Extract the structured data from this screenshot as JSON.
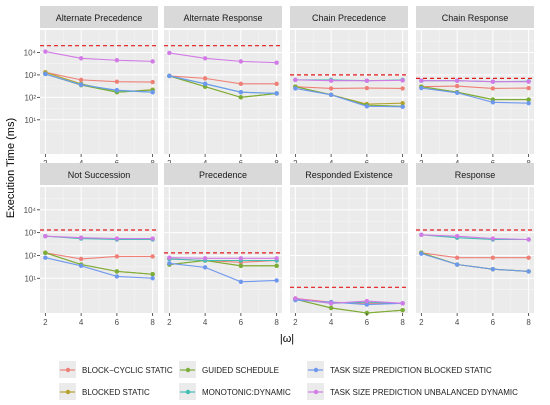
{
  "chart_data": {
    "type": "line",
    "ylabel": "Execution Time (ms)",
    "xlabel": "|ω|",
    "x": [
      2,
      4,
      6,
      8
    ],
    "x_ticks": [
      "2",
      "4",
      "6",
      "8"
    ],
    "y_scale": "log10",
    "ylim": [
      0.3,
      100000
    ],
    "y_ticks": [
      {
        "value": 10,
        "label": "10¹"
      },
      {
        "value": 100,
        "label": "10²"
      },
      {
        "value": 1000,
        "label": "10³"
      },
      {
        "value": 10000,
        "label": "10⁴"
      }
    ],
    "grid": true,
    "legend_position": "bottom",
    "series_meta": [
      {
        "key": "bcs",
        "name": "BLOCK−CYCLIC STATIC",
        "color": "#EE8077"
      },
      {
        "key": "bs",
        "name": "BLOCKED STATIC",
        "color": "#B5A22C"
      },
      {
        "key": "gs",
        "name": "GUIDED SCHEDULE",
        "color": "#7AAE38"
      },
      {
        "key": "md",
        "name": "MONOTONIC:DYNAMIC",
        "color": "#40BEB3"
      },
      {
        "key": "tbs",
        "name": "TASK SIZE PREDICTION BLOCKED STATIC",
        "color": "#6E98EE"
      },
      {
        "key": "tud",
        "name": "TASK SIZE PREDICTION UNBALANCED DYNAMIC",
        "color": "#D27BE6"
      }
    ],
    "reference_line_color": "#E31A1C",
    "panels": [
      {
        "title": "Alternate Precedence",
        "ref": 20000,
        "series": {
          "bcs": [
            1300,
            600,
            500,
            480
          ],
          "bs": [
            1300,
            400,
            170,
            220
          ],
          "gs": [
            1100,
            350,
            170,
            210
          ],
          "md": [
            1100,
            370,
            200,
            170
          ],
          "tbs": [
            1100,
            360,
            210,
            170
          ],
          "tud": [
            11000,
            5500,
            4500,
            4000
          ]
        }
      },
      {
        "title": "Alternate Response",
        "ref": 20000,
        "series": {
          "bcs": [
            900,
            700,
            400,
            400
          ],
          "bs": [
            900,
            300,
            100,
            150
          ],
          "gs": [
            900,
            300,
            100,
            150
          ],
          "md": [
            900,
            400,
            170,
            150
          ],
          "tbs": [
            900,
            400,
            170,
            150
          ],
          "tud": [
            9500,
            5500,
            4000,
            3500
          ]
        }
      },
      {
        "title": "Chain Precedence",
        "ref": 1000,
        "series": {
          "bcs": [
            300,
            250,
            260,
            250
          ],
          "bs": [
            300,
            130,
            50,
            55
          ],
          "gs": [
            300,
            130,
            45,
            40
          ],
          "md": [
            600,
            600,
            550,
            600
          ],
          "tbs": [
            250,
            130,
            40,
            38
          ],
          "tud": [
            600,
            550,
            550,
            570
          ]
        }
      },
      {
        "title": "Chain Response",
        "ref": 700,
        "series": {
          "bcs": [
            300,
            320,
            250,
            260
          ],
          "bs": [
            300,
            170,
            80,
            80
          ],
          "gs": [
            300,
            170,
            80,
            80
          ],
          "md": [
            550,
            550,
            500,
            520
          ],
          "tbs": [
            260,
            160,
            60,
            55
          ],
          "tud": [
            550,
            550,
            500,
            500
          ]
        }
      },
      {
        "title": "Not Succession",
        "ref": 1300,
        "series": {
          "bcs": [
            130,
            70,
            90,
            90
          ],
          "bs": [
            130,
            40,
            20,
            15
          ],
          "gs": [
            130,
            40,
            20,
            15
          ],
          "md": [
            700,
            550,
            500,
            500
          ],
          "tbs": [
            80,
            35,
            12,
            10
          ],
          "tud": [
            700,
            600,
            550,
            550
          ]
        }
      },
      {
        "title": "Precedence",
        "ref": 130,
        "series": {
          "bcs": [
            70,
            60,
            50,
            60
          ],
          "bs": [
            40,
            60,
            35,
            35
          ],
          "gs": [
            40,
            60,
            35,
            35
          ],
          "md": [
            70,
            60,
            60,
            60
          ],
          "tbs": [
            45,
            30,
            7,
            8
          ],
          "tud": [
            80,
            75,
            75,
            75
          ]
        }
      },
      {
        "title": "Responded Existence",
        "ref": 4,
        "series": {
          "bcs": [
            1.3,
            0.9,
            0.8,
            0.8
          ],
          "bs": [
            1.2,
            0.5,
            0.3,
            0.4
          ],
          "gs": [
            1.2,
            0.5,
            0.3,
            0.4
          ],
          "md": [
            1.2,
            0.8,
            0.9,
            0.8
          ],
          "tbs": [
            1.1,
            0.9,
            0.7,
            0.8
          ],
          "tud": [
            1.3,
            0.8,
            1.0,
            0.8
          ]
        }
      },
      {
        "title": "Response",
        "ref": 1300,
        "series": {
          "bcs": [
            130,
            80,
            80,
            80
          ],
          "bs": [
            130,
            40,
            25,
            20
          ],
          "gs": [
            130,
            40,
            25,
            20
          ],
          "md": [
            800,
            600,
            500,
            500
          ],
          "tbs": [
            120,
            40,
            25,
            20
          ],
          "tud": [
            800,
            700,
            550,
            500
          ]
        }
      }
    ]
  }
}
